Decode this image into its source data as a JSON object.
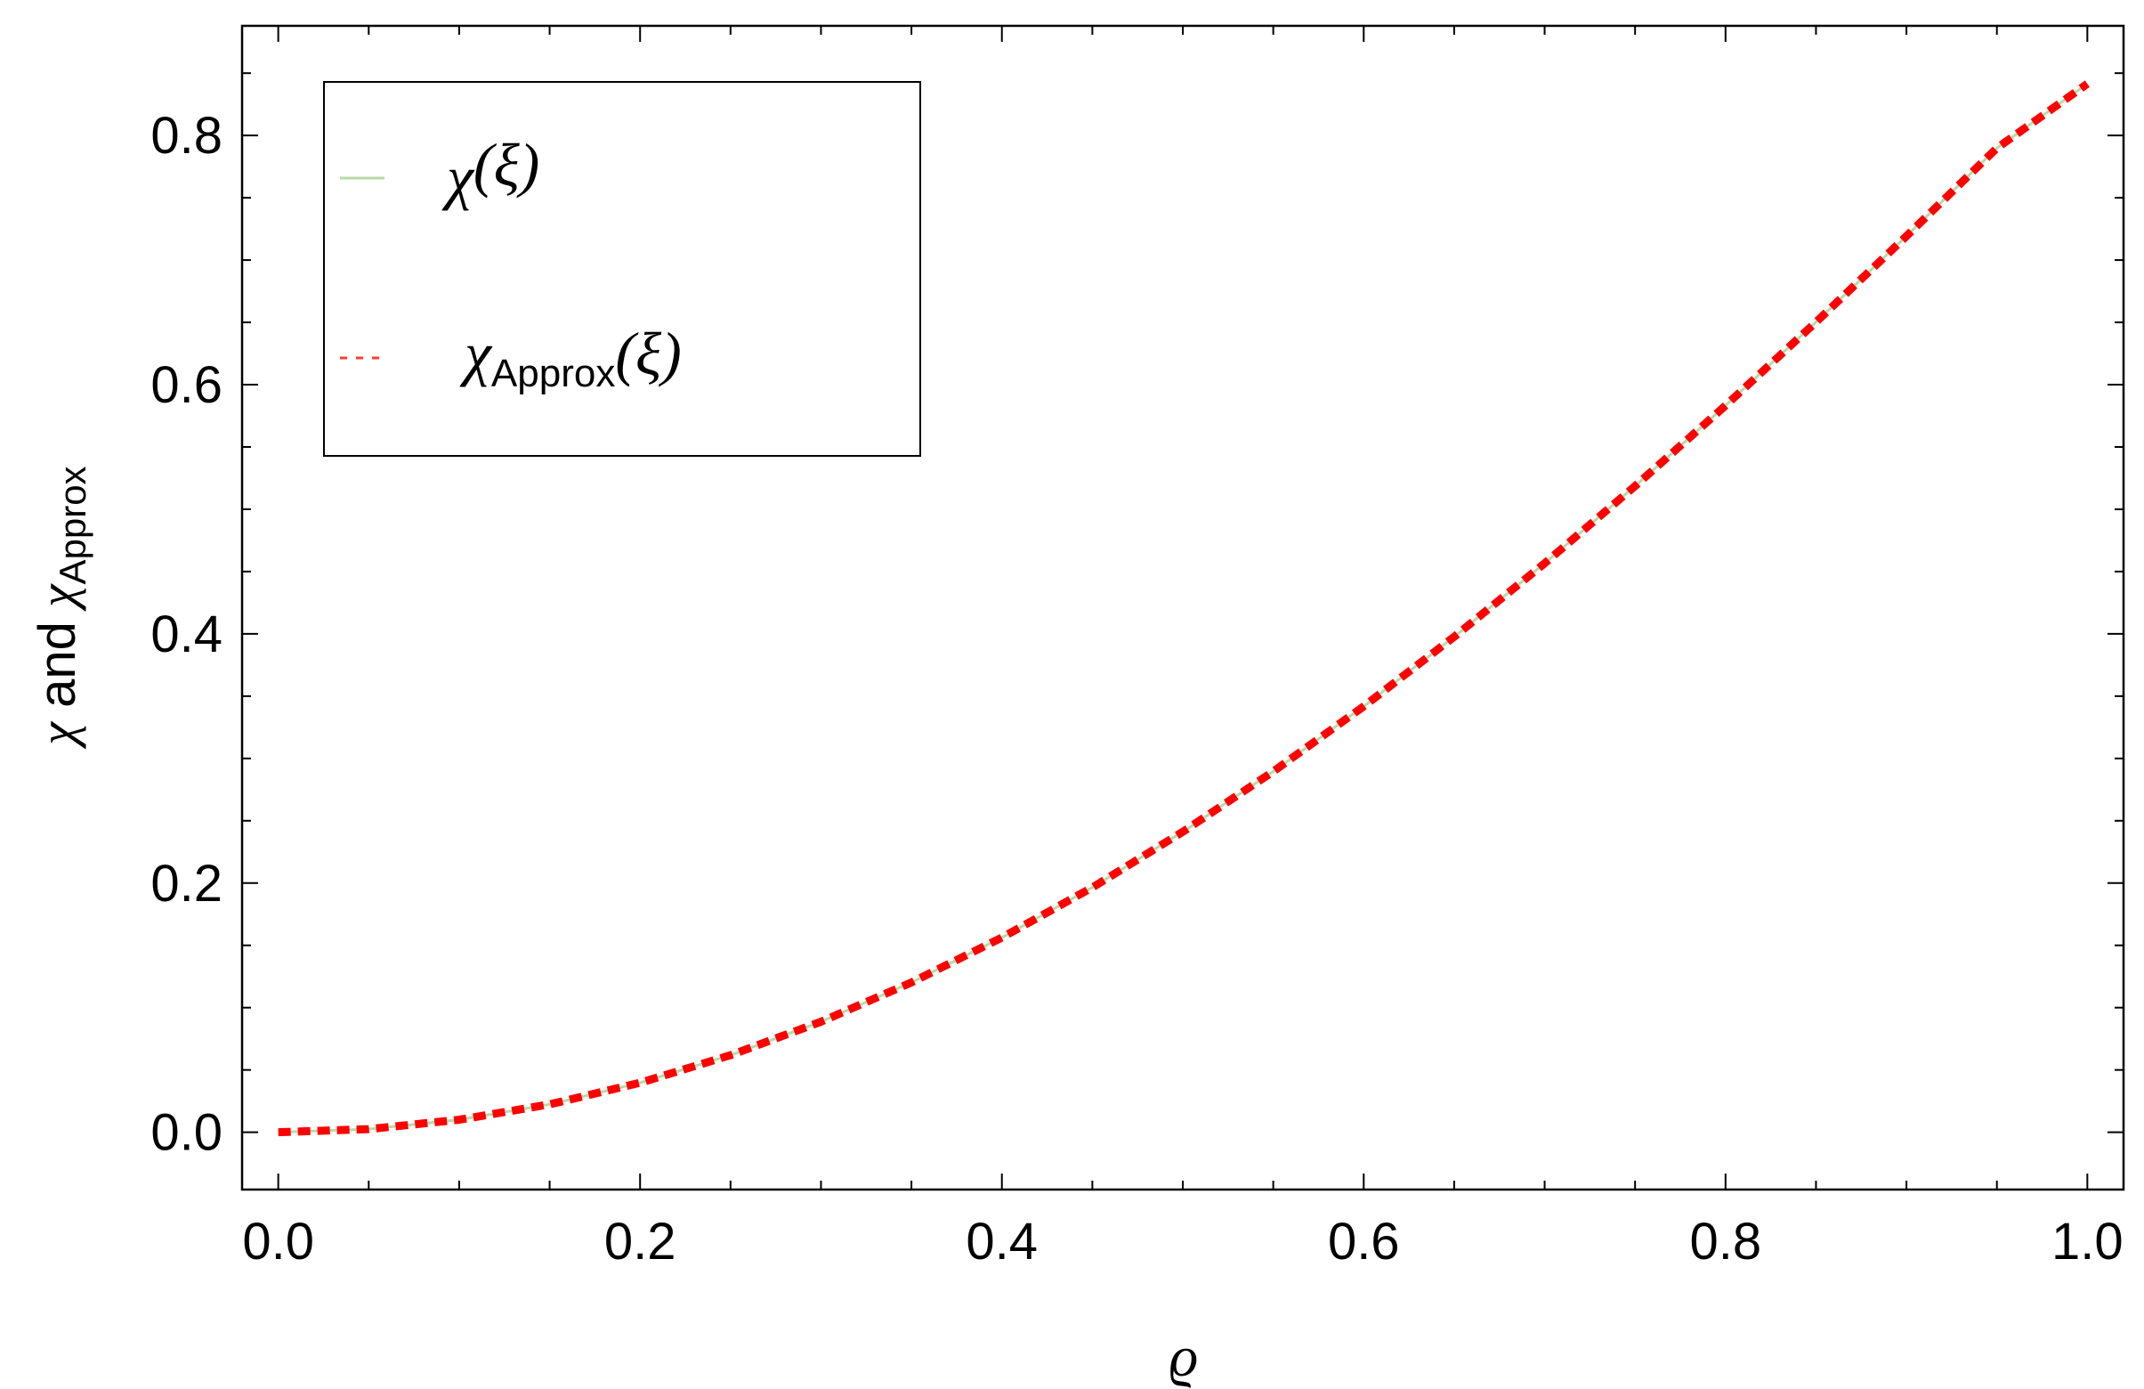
{
  "chart_data": {
    "type": "line",
    "xlabel": "ϱ",
    "ylabel": {
      "main": "χ",
      "mid": " and ",
      "approx": "χ",
      "approx_sub": "Approx"
    },
    "xlim": [
      -0.02,
      1.02
    ],
    "ylim": [
      -0.046,
      0.888
    ],
    "x_ticks": [
      0.0,
      0.2,
      0.4,
      0.6,
      0.8,
      1.0
    ],
    "x_tick_labels": [
      "0.0",
      "0.2",
      "0.4",
      "0.6",
      "0.8",
      "1.0"
    ],
    "y_ticks": [
      0.0,
      0.2,
      0.4,
      0.6,
      0.8
    ],
    "y_tick_labels": [
      "0.0",
      "0.2",
      "0.4",
      "0.6",
      "0.8"
    ],
    "grid": false,
    "legend": {
      "position": "top-left",
      "entries": [
        {
          "symbol": "χ",
          "sub": "",
          "arg": "(ξ)"
        },
        {
          "symbol": "χ",
          "sub": "Approx",
          "arg": "(ξ)"
        }
      ]
    },
    "series": [
      {
        "style": "solid",
        "color": "#b9d9a8",
        "x": [
          0.0,
          0.05,
          0.1,
          0.15,
          0.2,
          0.25,
          0.3,
          0.35,
          0.4,
          0.45,
          0.5,
          0.55,
          0.6,
          0.65,
          0.7,
          0.75,
          0.8,
          0.85,
          0.9,
          0.95,
          1.0
        ],
        "y": [
          0.0,
          0.0025,
          0.01,
          0.0224,
          0.0397,
          0.0618,
          0.0887,
          0.1202,
          0.1562,
          0.1965,
          0.2411,
          0.2895,
          0.3418,
          0.3976,
          0.4566,
          0.5186,
          0.5832,
          0.6502,
          0.7192,
          0.7899,
          0.8415
        ]
      },
      {
        "style": "dashed",
        "color": "#ff0000",
        "x": [
          0.0,
          0.05,
          0.1,
          0.15,
          0.2,
          0.25,
          0.3,
          0.35,
          0.4,
          0.45,
          0.5,
          0.55,
          0.6,
          0.65,
          0.7,
          0.75,
          0.8,
          0.85,
          0.9,
          0.95,
          1.0
        ],
        "y": [
          0.0,
          0.0025,
          0.01,
          0.0224,
          0.0397,
          0.0618,
          0.0887,
          0.1202,
          0.1562,
          0.1965,
          0.2411,
          0.2895,
          0.3418,
          0.3976,
          0.4566,
          0.5186,
          0.5832,
          0.6502,
          0.7192,
          0.7899,
          0.8415
        ]
      }
    ]
  }
}
